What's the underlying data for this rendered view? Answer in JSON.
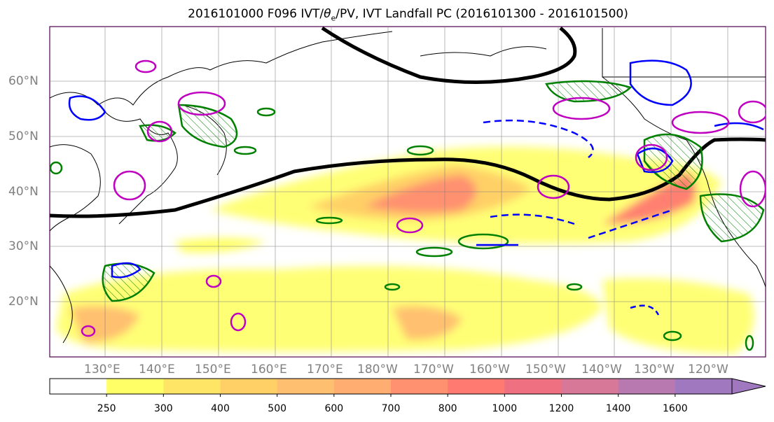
{
  "title": "2016101000 F096 IVT/θe/PV, IVT Landfall PC (2016101300 - 2016101500)",
  "title_parts": {
    "pre": "2016101000 F096 IVT/",
    "theta": "θ",
    "sub": "e",
    "post": "/PV, IVT Landfall PC (2016101300 - 2016101500)"
  },
  "lat_labels": [
    "60°N",
    "50°N",
    "40°N",
    "30°N",
    "20°N"
  ],
  "lon_labels": [
    "130°E",
    "140°E",
    "150°E",
    "160°E",
    "170°E",
    "180°W",
    "170°W",
    "160°W",
    "150°W",
    "140°W",
    "130°W",
    "120°W"
  ],
  "colorbar": {
    "tick_labels": [
      "250",
      "300",
      "400",
      "500",
      "600",
      "700",
      "800",
      "1000",
      "1200",
      "1400",
      "1600"
    ],
    "colors": [
      "#ffffff",
      "#ffff66",
      "#ffe566",
      "#ffd066",
      "#ffbf70",
      "#ffad70",
      "#ff9070",
      "#ff7a70",
      "#ef7080",
      "#d87898",
      "#b878b0",
      "#a078c0"
    ]
  },
  "contour_colors": {
    "ivt": "#000000",
    "positive_theta": "#008000",
    "negative": "#0000ff",
    "pv": "#c000c0"
  }
}
